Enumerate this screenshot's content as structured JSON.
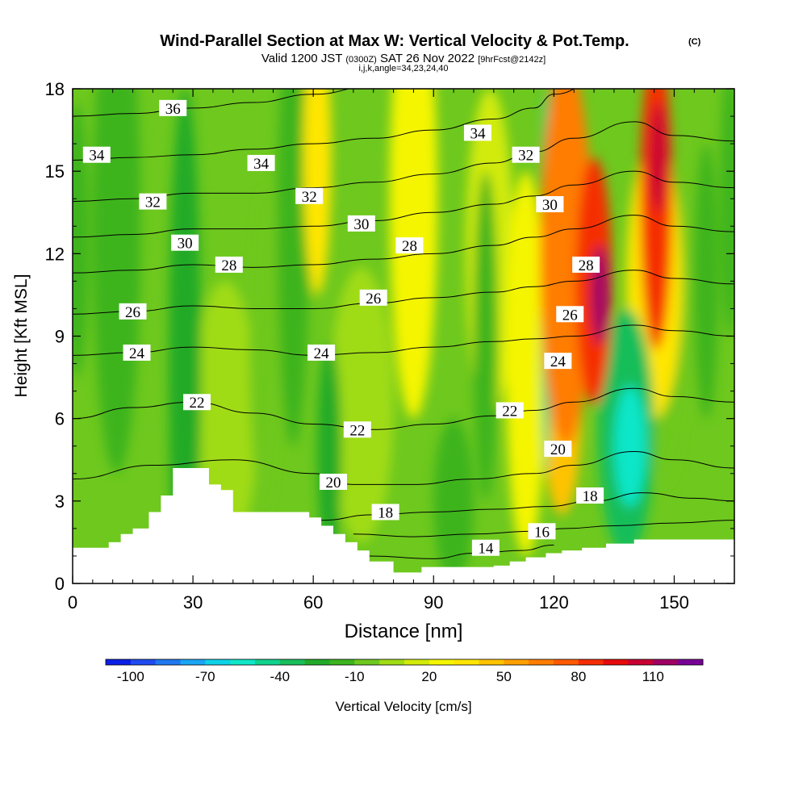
{
  "chart_data": {
    "type": "heatmap",
    "title_main": "Wind-Parallel Section at Max W: Vertical Velocity & Pot.Temp.",
    "title_mark": "(C)",
    "subtitle_a": "Valid 1200 JST",
    "subtitle_b": "(0300Z)",
    "subtitle_c": "SAT 26 Nov 2022",
    "subtitle_d": "[9hrFcst@2142z]",
    "subtitle_e": "i,j,k,angle=34,23,24,40",
    "xlabel": "Distance [nm]",
    "ylabel": "Height [Kft MSL]",
    "xlim": [
      0,
      165
    ],
    "ylim": [
      0,
      18
    ],
    "x_ticks": [
      0,
      30,
      60,
      90,
      120,
      150
    ],
    "y_ticks": [
      0,
      3,
      6,
      9,
      12,
      15,
      18
    ],
    "colorbar": {
      "label": "Vertical Velocity [cm/s]",
      "min": -110,
      "step": 10,
      "tick_values": [
        -100,
        -70,
        -40,
        -10,
        20,
        50,
        80,
        110
      ],
      "colors": [
        "#0a1ee6",
        "#1f4bf0",
        "#1f78f0",
        "#1aa5f5",
        "#0fd2e6",
        "#10e6c8",
        "#10d28c",
        "#18be5a",
        "#20aa28",
        "#3cb41e",
        "#6ec81e",
        "#a0dc14",
        "#d2eb0a",
        "#f5f500",
        "#ffe600",
        "#ffc300",
        "#ffa000",
        "#ff7d00",
        "#ff5a00",
        "#f52d00",
        "#e60a0a",
        "#c80032",
        "#a00064",
        "#780096"
      ]
    },
    "terrain_profile": [
      [
        0,
        1.3
      ],
      [
        9,
        1.3
      ],
      [
        9,
        1.5
      ],
      [
        12,
        1.5
      ],
      [
        12,
        1.8
      ],
      [
        15,
        1.8
      ],
      [
        15,
        2
      ],
      [
        19,
        2
      ],
      [
        19,
        2.6
      ],
      [
        22,
        2.6
      ],
      [
        22,
        3.2
      ],
      [
        25,
        3.2
      ],
      [
        25,
        4.2
      ],
      [
        34,
        4.2
      ],
      [
        34,
        3.6
      ],
      [
        37,
        3.6
      ],
      [
        37,
        3.4
      ],
      [
        40,
        3.4
      ],
      [
        40,
        2.6
      ],
      [
        59,
        2.6
      ],
      [
        59,
        2.4
      ],
      [
        62,
        2.4
      ],
      [
        62,
        2.1
      ],
      [
        65,
        2.1
      ],
      [
        65,
        1.8
      ],
      [
        68,
        1.8
      ],
      [
        68,
        1.5
      ],
      [
        71,
        1.5
      ],
      [
        71,
        1.2
      ],
      [
        74,
        1.2
      ],
      [
        74,
        0.8
      ],
      [
        80,
        0.8
      ],
      [
        80,
        0.4
      ],
      [
        87,
        0.4
      ],
      [
        87,
        0.6
      ],
      [
        92,
        0.6
      ],
      [
        92,
        0.6
      ],
      [
        105,
        0.6
      ],
      [
        105,
        0.65
      ],
      [
        109,
        0.65
      ],
      [
        109,
        0.8
      ],
      [
        113,
        0.8
      ],
      [
        113,
        0.95
      ],
      [
        118,
        0.95
      ],
      [
        118,
        1.1
      ],
      [
        122,
        1.1
      ],
      [
        122,
        1.2
      ],
      [
        127,
        1.2
      ],
      [
        127,
        1.3
      ],
      [
        133,
        1.3
      ],
      [
        133,
        1.45
      ],
      [
        140,
        1.45
      ],
      [
        140,
        1.6
      ],
      [
        148,
        1.6
      ],
      [
        148,
        1.6
      ],
      [
        165,
        1.6
      ]
    ],
    "isentropes": [
      {
        "theta": 14,
        "points": [
          [
            74,
            1.0
          ],
          [
            90,
            0.9
          ],
          [
            100,
            1.1
          ],
          [
            112,
            1.2
          ],
          [
            120,
            1.4
          ]
        ]
      },
      {
        "theta": 16,
        "points": [
          [
            70,
            1.8
          ],
          [
            85,
            1.7
          ],
          [
            100,
            1.8
          ],
          [
            115,
            1.9
          ],
          [
            123,
            2.0
          ],
          [
            135,
            2.1
          ],
          [
            150,
            2.2
          ],
          [
            165,
            2.3
          ]
        ]
      },
      {
        "theta": 18,
        "points": [
          [
            62,
            2.3
          ],
          [
            75,
            2.5
          ],
          [
            90,
            2.6
          ],
          [
            105,
            2.7
          ],
          [
            118,
            2.8
          ],
          [
            130,
            3.0
          ],
          [
            142,
            3.3
          ],
          [
            155,
            3.1
          ],
          [
            165,
            3.0
          ]
        ]
      },
      {
        "theta": 20,
        "points": [
          [
            0,
            3.8
          ],
          [
            20,
            4.3
          ],
          [
            40,
            4.5
          ],
          [
            60,
            4.0
          ],
          [
            70,
            3.6
          ],
          [
            85,
            3.6
          ],
          [
            100,
            3.8
          ],
          [
            115,
            4.0
          ],
          [
            125,
            4.3
          ],
          [
            140,
            4.8
          ],
          [
            150,
            4.5
          ],
          [
            165,
            4.2
          ]
        ]
      },
      {
        "theta": 22,
        "points": [
          [
            0,
            6.0
          ],
          [
            15,
            6.4
          ],
          [
            30,
            6.6
          ],
          [
            45,
            6.2
          ],
          [
            60,
            5.8
          ],
          [
            75,
            5.6
          ],
          [
            90,
            5.8
          ],
          [
            105,
            6.1
          ],
          [
            115,
            6.3
          ],
          [
            125,
            6.6
          ],
          [
            140,
            7.1
          ],
          [
            150,
            6.8
          ],
          [
            165,
            6.6
          ]
        ]
      },
      {
        "theta": 24,
        "points": [
          [
            0,
            8.3
          ],
          [
            15,
            8.4
          ],
          [
            30,
            8.6
          ],
          [
            45,
            8.5
          ],
          [
            60,
            8.3
          ],
          [
            75,
            8.4
          ],
          [
            90,
            8.6
          ],
          [
            105,
            8.8
          ],
          [
            115,
            8.9
          ],
          [
            125,
            9.0
          ],
          [
            140,
            9.4
          ],
          [
            150,
            9.2
          ],
          [
            165,
            9.0
          ]
        ]
      },
      {
        "theta": 26,
        "points": [
          [
            0,
            9.8
          ],
          [
            15,
            9.9
          ],
          [
            30,
            10.1
          ],
          [
            45,
            10.0
          ],
          [
            60,
            10.0
          ],
          [
            75,
            10.2
          ],
          [
            90,
            10.4
          ],
          [
            105,
            10.6
          ],
          [
            115,
            10.8
          ],
          [
            125,
            11.0
          ],
          [
            140,
            11.4
          ],
          [
            150,
            11.1
          ],
          [
            165,
            10.9
          ]
        ]
      },
      {
        "theta": 28,
        "points": [
          [
            0,
            11.3
          ],
          [
            15,
            11.4
          ],
          [
            30,
            11.6
          ],
          [
            45,
            11.5
          ],
          [
            60,
            11.6
          ],
          [
            75,
            11.8
          ],
          [
            90,
            12.0
          ],
          [
            105,
            12.3
          ],
          [
            115,
            12.6
          ],
          [
            125,
            12.9
          ],
          [
            140,
            13.4
          ],
          [
            150,
            13.0
          ],
          [
            165,
            12.8
          ]
        ]
      },
      {
        "theta": 30,
        "points": [
          [
            0,
            12.6
          ],
          [
            15,
            12.7
          ],
          [
            30,
            12.9
          ],
          [
            45,
            12.9
          ],
          [
            60,
            13.0
          ],
          [
            75,
            13.2
          ],
          [
            90,
            13.5
          ],
          [
            105,
            13.8
          ],
          [
            115,
            14.1
          ],
          [
            125,
            14.5
          ],
          [
            140,
            15.0
          ],
          [
            150,
            14.6
          ],
          [
            165,
            14.4
          ]
        ]
      },
      {
        "theta": 32,
        "points": [
          [
            0,
            13.9
          ],
          [
            15,
            14.0
          ],
          [
            30,
            14.2
          ],
          [
            45,
            14.2
          ],
          [
            60,
            14.4
          ],
          [
            75,
            14.6
          ],
          [
            90,
            14.9
          ],
          [
            105,
            15.3
          ],
          [
            115,
            15.7
          ],
          [
            125,
            16.2
          ],
          [
            140,
            16.8
          ],
          [
            150,
            16.3
          ],
          [
            165,
            16.1
          ]
        ]
      },
      {
        "theta": 34,
        "points": [
          [
            0,
            15.4
          ],
          [
            15,
            15.5
          ],
          [
            30,
            15.6
          ],
          [
            45,
            15.8
          ],
          [
            60,
            16.0
          ],
          [
            75,
            16.2
          ],
          [
            90,
            16.5
          ],
          [
            105,
            16.9
          ],
          [
            115,
            17.3
          ],
          [
            120,
            17.8
          ],
          [
            130,
            18.2
          ]
        ]
      },
      {
        "theta": 36,
        "points": [
          [
            0,
            17.0
          ],
          [
            15,
            17.1
          ],
          [
            30,
            17.3
          ],
          [
            45,
            17.5
          ],
          [
            60,
            17.8
          ],
          [
            75,
            18.1
          ]
        ]
      }
    ],
    "contour_labels": [
      {
        "text": "36",
        "x": 25,
        "y": 17.3
      },
      {
        "text": "34",
        "x": 6,
        "y": 15.6
      },
      {
        "text": "34",
        "x": 47,
        "y": 15.3
      },
      {
        "text": "34",
        "x": 101,
        "y": 16.4
      },
      {
        "text": "32",
        "x": 113,
        "y": 15.6
      },
      {
        "text": "32",
        "x": 20,
        "y": 13.9
      },
      {
        "text": "32",
        "x": 59,
        "y": 14.1
      },
      {
        "text": "30",
        "x": 28,
        "y": 12.4
      },
      {
        "text": "30",
        "x": 72,
        "y": 13.1
      },
      {
        "text": "30",
        "x": 119,
        "y": 13.8
      },
      {
        "text": "28",
        "x": 39,
        "y": 11.6
      },
      {
        "text": "28",
        "x": 84,
        "y": 12.3
      },
      {
        "text": "28",
        "x": 128,
        "y": 11.6
      },
      {
        "text": "26",
        "x": 15,
        "y": 9.9
      },
      {
        "text": "26",
        "x": 75,
        "y": 10.4
      },
      {
        "text": "26",
        "x": 124,
        "y": 9.8
      },
      {
        "text": "24",
        "x": 16,
        "y": 8.4
      },
      {
        "text": "24",
        "x": 62,
        "y": 8.4
      },
      {
        "text": "24",
        "x": 121,
        "y": 8.1
      },
      {
        "text": "22",
        "x": 31,
        "y": 6.6
      },
      {
        "text": "22",
        "x": 71,
        "y": 5.6
      },
      {
        "text": "22",
        "x": 109,
        "y": 6.3
      },
      {
        "text": "20",
        "x": 65,
        "y": 3.7
      },
      {
        "text": "20",
        "x": 121,
        "y": 4.9
      },
      {
        "text": "18",
        "x": 78,
        "y": 2.6
      },
      {
        "text": "18",
        "x": 129,
        "y": 3.2
      },
      {
        "text": "16",
        "x": 117,
        "y": 1.9
      },
      {
        "text": "14",
        "x": 103,
        "y": 1.3
      }
    ],
    "velocity_features": [
      {
        "x": 123,
        "y": 12.0,
        "w": 6.5,
        "h": 7.0,
        "value": 60
      },
      {
        "x": 130,
        "y": 11.0,
        "w": 4.5,
        "h": 4.5,
        "value": 80
      },
      {
        "x": 131.5,
        "y": 10.5,
        "w": 2.2,
        "h": 1.8,
        "value": 110
      },
      {
        "x": 122,
        "y": 6.5,
        "w": 5.0,
        "h": 4.0,
        "value": 40
      },
      {
        "x": 113,
        "y": 8.0,
        "w": 5.0,
        "h": 7.0,
        "value": 25
      },
      {
        "x": 145.5,
        "y": 14.0,
        "w": 4.0,
        "h": 5.5,
        "value": 80
      },
      {
        "x": 146,
        "y": 15.5,
        "w": 2.0,
        "h": 2.0,
        "value": 100
      },
      {
        "x": 145,
        "y": 11.0,
        "w": 7.0,
        "h": 5.0,
        "value": 30
      },
      {
        "x": 61,
        "y": 15.5,
        "w": 3.5,
        "h": 5.0,
        "value": 35
      },
      {
        "x": 85,
        "y": 14.0,
        "w": 6.0,
        "h": 8.0,
        "value": 20
      },
      {
        "x": 104,
        "y": 12.0,
        "w": 6.0,
        "h": 6.0,
        "value": 15
      },
      {
        "x": 118,
        "y": 11.0,
        "w": 1.3,
        "h": 7.0,
        "value": -45
      },
      {
        "x": 138,
        "y": 5.5,
        "w": 7.0,
        "h": 4.5,
        "value": -40
      },
      {
        "x": 139,
        "y": 5.0,
        "w": 4.0,
        "h": 2.2,
        "value": -55
      },
      {
        "x": 11,
        "y": 13.0,
        "w": 6.0,
        "h": 9.0,
        "value": -20
      },
      {
        "x": 28,
        "y": 8.0,
        "w": 4.0,
        "h": 10.0,
        "value": -22
      },
      {
        "x": 48,
        "y": 8.5,
        "w": 4.0,
        "h": 6.0,
        "value": -10
      },
      {
        "x": 64,
        "y": 4.8,
        "w": 3.0,
        "h": 4.0,
        "value": -30
      },
      {
        "x": 55,
        "y": 13.0,
        "w": 4.0,
        "h": 8.0,
        "value": -15
      },
      {
        "x": 95,
        "y": 3.0,
        "w": 5.0,
        "h": 3.0,
        "value": -15
      },
      {
        "x": 103,
        "y": 9.0,
        "w": 3.0,
        "h": 6.0,
        "value": -15
      },
      {
        "x": 1,
        "y": 12.5,
        "w": 3.0,
        "h": 5.0,
        "value": -18
      },
      {
        "x": 158,
        "y": 11.0,
        "w": 3.0,
        "h": 5.0,
        "value": -20
      },
      {
        "x": 164,
        "y": 14.0,
        "w": 2.5,
        "h": 5.0,
        "value": -20
      },
      {
        "x": 148,
        "y": 9.5,
        "w": 6.0,
        "h": 6.0,
        "value": -5
      },
      {
        "x": 72,
        "y": 6.5,
        "w": 8.0,
        "h": 5.0,
        "value": 5
      },
      {
        "x": 38,
        "y": 6.0,
        "w": 8.0,
        "h": 5.0,
        "value": 5
      }
    ],
    "background_value": -2
  }
}
